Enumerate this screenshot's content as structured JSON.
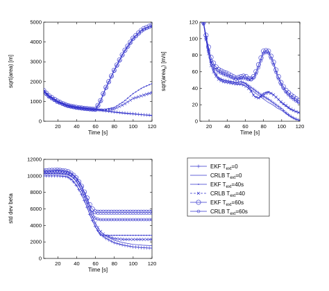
{
  "theme": {
    "line_color": "#3333cc",
    "axis_color": "#000000",
    "background": "#ffffff"
  },
  "chart_data": [
    {
      "id": "area",
      "type": "line",
      "xlabel": "Time [s]",
      "ylabel": "sqrt(area) [m]",
      "ylabel_sub": "",
      "ylabel_suffix": "",
      "xlim": [
        5,
        120
      ],
      "ylim": [
        0,
        5000
      ],
      "xticks": [
        20,
        40,
        60,
        80,
        100,
        120
      ],
      "yticks": [
        0,
        1000,
        2000,
        3000,
        4000,
        5000
      ],
      "grid": false,
      "series": [
        {
          "x": [
            5,
            10,
            20,
            30,
            40,
            50,
            60,
            70,
            80,
            90,
            100,
            110,
            120
          ],
          "y": [
            1550,
            1300,
            1000,
            800,
            700,
            640,
            600,
            530,
            470,
            420,
            380,
            330,
            300
          ]
        },
        {
          "x": [
            5,
            10,
            20,
            30,
            40,
            50,
            60,
            70,
            80,
            90,
            100,
            110,
            120
          ],
          "y": [
            1500,
            1250,
            950,
            780,
            680,
            620,
            580,
            510,
            450,
            400,
            360,
            320,
            280
          ]
        },
        {
          "x": [
            5,
            10,
            20,
            30,
            40,
            50,
            60,
            70,
            80,
            90,
            100,
            110,
            120
          ],
          "y": [
            1550,
            1300,
            1000,
            800,
            700,
            640,
            600,
            600,
            700,
            1000,
            1400,
            1700,
            1900
          ]
        },
        {
          "x": [
            5,
            10,
            20,
            30,
            40,
            50,
            60,
            70,
            80,
            90,
            100,
            110,
            120
          ],
          "y": [
            1500,
            1250,
            950,
            780,
            680,
            620,
            580,
            560,
            620,
            850,
            1150,
            1300,
            1450
          ]
        },
        {
          "x": [
            5,
            10,
            20,
            30,
            40,
            50,
            60,
            65,
            70,
            80,
            90,
            100,
            110,
            120
          ],
          "y": [
            1550,
            1300,
            1000,
            800,
            700,
            640,
            600,
            1000,
            1600,
            2600,
            3500,
            4200,
            4650,
            4850
          ]
        },
        {
          "x": [
            5,
            10,
            20,
            30,
            40,
            50,
            60,
            65,
            70,
            80,
            90,
            100,
            110,
            120
          ],
          "y": [
            1500,
            1250,
            950,
            780,
            680,
            620,
            580,
            950,
            1550,
            2550,
            3450,
            4150,
            4600,
            4800
          ]
        }
      ]
    },
    {
      "id": "area-rate",
      "type": "line",
      "xlabel": "Time [s]",
      "ylabel": "sqrt(area",
      "ylabel_sub": "v",
      "ylabel_suffix": ") [m/s]",
      "xlim": [
        10,
        120
      ],
      "ylim": [
        0,
        120
      ],
      "xticks": [
        20,
        40,
        60,
        80,
        100,
        120
      ],
      "yticks": [
        0,
        20,
        40,
        60,
        80,
        100,
        120
      ],
      "grid": false,
      "series": [
        {
          "x": [
            14,
            18,
            22,
            26,
            30,
            35,
            40,
            45,
            50,
            55,
            60,
            65,
            70,
            75,
            80,
            85,
            90,
            95,
            100,
            105,
            110,
            115,
            120
          ],
          "y": [
            120,
            95,
            72,
            60,
            53,
            50,
            49,
            48,
            47,
            48,
            46,
            42,
            38,
            34,
            30,
            27,
            23,
            19,
            15,
            10,
            6,
            3,
            1
          ]
        },
        {
          "x": [
            14,
            18,
            22,
            26,
            30,
            35,
            40,
            45,
            50,
            55,
            60,
            65,
            70,
            75,
            80,
            85,
            90,
            95,
            100,
            105,
            110,
            115,
            120
          ],
          "y": [
            118,
            90,
            68,
            57,
            51,
            48,
            47,
            46,
            45,
            45,
            43,
            39,
            35,
            31,
            27,
            23,
            20,
            16,
            13,
            9,
            5,
            2,
            1
          ]
        },
        {
          "x": [
            14,
            18,
            22,
            26,
            30,
            35,
            40,
            45,
            50,
            55,
            60,
            65,
            70,
            75,
            80,
            85,
            90,
            95,
            100,
            105,
            110,
            115,
            120
          ],
          "y": [
            120,
            95,
            72,
            60,
            53,
            50,
            49,
            48,
            47,
            48,
            46,
            40,
            30,
            28,
            34,
            36,
            33,
            28,
            22,
            18,
            14,
            12,
            10
          ]
        },
        {
          "x": [
            14,
            18,
            22,
            26,
            30,
            35,
            40,
            45,
            50,
            55,
            60,
            65,
            70,
            75,
            80,
            85,
            90,
            95,
            100,
            105,
            110,
            115,
            120
          ],
          "y": [
            118,
            90,
            68,
            57,
            51,
            48,
            47,
            46,
            45,
            45,
            43,
            38,
            30,
            28,
            32,
            35,
            33,
            28,
            23,
            19,
            15,
            12,
            10
          ]
        },
        {
          "x": [
            14,
            18,
            22,
            26,
            30,
            35,
            40,
            45,
            50,
            55,
            60,
            65,
            70,
            75,
            80,
            85,
            90,
            95,
            100,
            105,
            110,
            115,
            120
          ],
          "y": [
            120,
            97,
            78,
            68,
            63,
            60,
            58,
            55,
            52,
            54,
            55,
            50,
            55,
            70,
            85,
            86,
            75,
            58,
            45,
            37,
            32,
            28,
            24
          ]
        },
        {
          "x": [
            14,
            18,
            22,
            26,
            30,
            35,
            40,
            45,
            50,
            55,
            60,
            65,
            70,
            75,
            80,
            85,
            90,
            95,
            100,
            105,
            110,
            115,
            120
          ],
          "y": [
            118,
            92,
            74,
            65,
            60,
            57,
            55,
            53,
            51,
            52,
            52,
            50,
            53,
            66,
            82,
            84,
            72,
            55,
            43,
            35,
            29,
            25,
            22
          ]
        }
      ]
    },
    {
      "id": "beta",
      "type": "line",
      "xlabel": "Time [s]",
      "ylabel": "std dev beta",
      "ylabel_sub": "",
      "ylabel_suffix": "",
      "xlim": [
        5,
        120
      ],
      "ylim": [
        0,
        12000
      ],
      "xticks": [
        20,
        40,
        60,
        80,
        100,
        120
      ],
      "yticks": [
        0,
        2000,
        4000,
        6000,
        8000,
        10000,
        12000
      ],
      "grid": false,
      "series": [
        {
          "x": [
            5,
            10,
            20,
            30,
            35,
            40,
            45,
            50,
            55,
            60,
            65,
            70,
            80,
            90,
            100,
            110,
            120
          ],
          "y": [
            10000,
            10000,
            10000,
            9900,
            9500,
            8800,
            7800,
            6500,
            5000,
            3800,
            3000,
            2500,
            1900,
            1600,
            1400,
            1300,
            1250
          ]
        },
        {
          "x": [
            5,
            10,
            20,
            30,
            35,
            40,
            45,
            50,
            55,
            60,
            65,
            70,
            80,
            90,
            100,
            110,
            120
          ],
          "y": [
            10300,
            10300,
            10300,
            10200,
            9900,
            9300,
            8300,
            7000,
            5500,
            4200,
            3300,
            2800,
            2200,
            1900,
            1700,
            1600,
            1550
          ]
        },
        {
          "x": [
            5,
            10,
            20,
            30,
            35,
            40,
            45,
            50,
            55,
            60,
            65,
            70,
            80,
            90,
            100,
            110,
            120
          ],
          "y": [
            10000,
            10000,
            10000,
            9900,
            9500,
            8800,
            7800,
            6500,
            5000,
            3800,
            2800,
            2800,
            2800,
            2800,
            2800,
            2800,
            2800
          ]
        },
        {
          "x": [
            5,
            10,
            20,
            30,
            35,
            40,
            45,
            50,
            55,
            60,
            65,
            70,
            80,
            90,
            100,
            110,
            120
          ],
          "y": [
            10300,
            10300,
            10300,
            10200,
            9900,
            9300,
            8300,
            7000,
            5500,
            4200,
            3300,
            2800,
            2400,
            2300,
            2300,
            2300,
            2300
          ]
        },
        {
          "x": [
            5,
            10,
            20,
            30,
            35,
            40,
            45,
            50,
            55,
            60,
            65,
            70,
            80,
            90,
            100,
            110,
            120
          ],
          "y": [
            10600,
            10650,
            10700,
            10550,
            10250,
            9700,
            8800,
            7600,
            6200,
            5600,
            5600,
            5600,
            5600,
            5600,
            5600,
            5600,
            5600
          ]
        },
        {
          "x": [
            5,
            10,
            20,
            30,
            35,
            40,
            45,
            50,
            55,
            60,
            65,
            70,
            80,
            90,
            100,
            110,
            120
          ],
          "y": [
            10500,
            10500,
            10600,
            10450,
            10150,
            9600,
            8700,
            7400,
            5900,
            4800,
            4700,
            4700,
            4700,
            4700,
            4700,
            4700,
            4700
          ]
        }
      ]
    }
  ],
  "legend": {
    "placement": "right of bottom-left plot",
    "entries": [
      {
        "label": "EKF",
        "sub_prefix": "T",
        "sub": "ext",
        "value": "=0",
        "marker": "plus"
      },
      {
        "label": "CRLB",
        "sub_prefix": "T",
        "sub": "ext",
        "value": "=0",
        "marker": "none"
      },
      {
        "label": "EKF",
        "sub_prefix": "T",
        "sub": "ext",
        "value": "=40s",
        "marker": "point"
      },
      {
        "label": "CRLB",
        "sub_prefix": "T",
        "sub": "ext",
        "value": "=40",
        "marker": "x"
      },
      {
        "label": "EKF",
        "sub_prefix": "T",
        "sub": "ext",
        "value": "=60s",
        "marker": "circle"
      },
      {
        "label": "CRLB",
        "sub_prefix": "T",
        "sub": "ext",
        "value": "=60s",
        "marker": "smallcircle"
      }
    ]
  }
}
